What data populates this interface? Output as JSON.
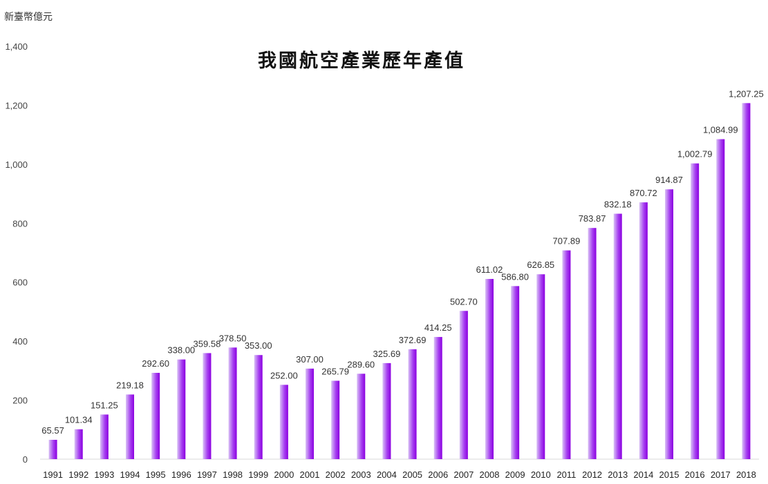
{
  "unit_label": "新臺幣億元",
  "chart_data": {
    "type": "bar",
    "title": "我國航空產業歷年產值",
    "ylabel": "新臺幣億元",
    "xlabel": "",
    "ylim": [
      0,
      1400
    ],
    "yticks": [
      "0",
      "200",
      "400",
      "600",
      "800",
      "1,000",
      "1,200",
      "1,400"
    ],
    "ytick_values": [
      0,
      200,
      400,
      600,
      800,
      1000,
      1200,
      1400
    ],
    "grid": false,
    "legend": "none",
    "bar_color_start": "#d9c2f5",
    "bar_color_end": "#8b00e0",
    "categories": [
      "1991",
      "1992",
      "1993",
      "1994",
      "1995",
      "1996",
      "1997",
      "1998",
      "1999",
      "2000",
      "2001",
      "2002",
      "2003",
      "2004",
      "2005",
      "2006",
      "2007",
      "2008",
      "2009",
      "2010",
      "2011",
      "2012",
      "2013",
      "2014",
      "2015",
      "2016",
      "2017",
      "2018"
    ],
    "values": [
      65.57,
      101.34,
      151.25,
      219.18,
      292.6,
      338.0,
      359.58,
      378.5,
      353.0,
      252.0,
      307.0,
      265.79,
      289.6,
      325.69,
      372.69,
      414.25,
      502.7,
      611.02,
      586.8,
      626.85,
      707.89,
      783.87,
      832.18,
      870.72,
      914.87,
      1002.79,
      1084.99,
      1207.25
    ],
    "data_labels": [
      "65.57",
      "101.34",
      "151.25",
      "219.18",
      "292.60",
      "338.00",
      "359.58",
      "378.50",
      "353.00",
      "252.00",
      "307.00",
      "265.79",
      "289.60",
      "325.69",
      "372.69",
      "414.25",
      "502.70",
      "611.02",
      "586.80",
      "626.85",
      "707.89",
      "783.87",
      "832.18",
      "870.72",
      "914.87",
      "1,002.79",
      "1,084.99",
      "1,207.25"
    ]
  }
}
